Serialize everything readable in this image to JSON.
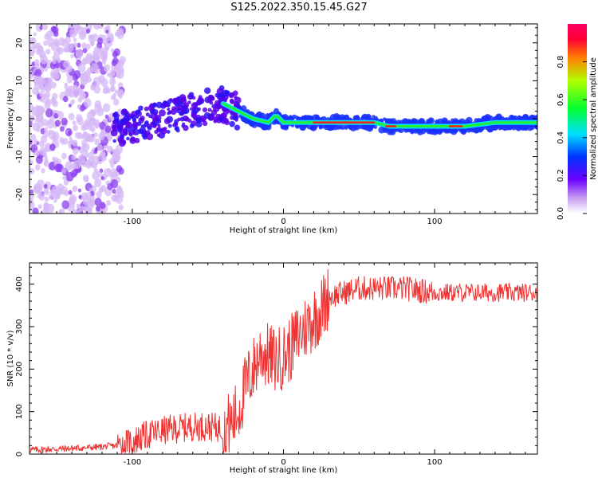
{
  "title": "S125.2022.350.15.45.G27",
  "chart_data": [
    {
      "type": "heatmap",
      "xlabel": "Height of straight line (km)",
      "ylabel": "Frequency (Hz)",
      "xlim": [
        -168,
        168
      ],
      "ylim": [
        -25,
        25
      ],
      "xticks": [
        -100,
        0,
        100
      ],
      "yticks": [
        -20,
        -10,
        0,
        10,
        20
      ],
      "colorbar": {
        "label": "Normalized spectral amplitude",
        "range": [
          0,
          1
        ],
        "ticks": [
          "0.0",
          "0.2",
          "0.4",
          "0.6",
          "0.8"
        ]
      },
      "ridge": {
        "x": [
          -110,
          -100,
          -90,
          -80,
          -70,
          -60,
          -50,
          -40,
          -35,
          -30,
          -20,
          -10,
          -5,
          0,
          10,
          20,
          40,
          60,
          70,
          80,
          90,
          100,
          120,
          140,
          168
        ],
        "frequency": [
          -2,
          -2,
          -1,
          0,
          1,
          2,
          3,
          4,
          3,
          2,
          0,
          -1,
          1,
          -1,
          -1,
          -1,
          -1,
          -1,
          -2,
          -2,
          -2,
          -2,
          -2,
          -1,
          -1
        ]
      }
    },
    {
      "type": "line",
      "xlabel": "Height of straight line (km)",
      "ylabel": "SNR (10 * v/v)",
      "xlim": [
        -168,
        168
      ],
      "ylim": [
        0,
        450
      ],
      "xticks": [
        -100,
        0,
        100
      ],
      "yticks": [
        0,
        100,
        200,
        300,
        400
      ],
      "color": "#ee3333",
      "x": [
        -168,
        -150,
        -130,
        -110,
        -100,
        -90,
        -80,
        -70,
        -60,
        -50,
        -40,
        -35,
        -30,
        -25,
        -20,
        -15,
        -10,
        -5,
        0,
        5,
        10,
        15,
        20,
        25,
        30,
        40,
        50,
        60,
        70,
        80,
        90,
        100,
        120,
        140,
        168
      ],
      "y": [
        10,
        12,
        15,
        20,
        30,
        45,
        55,
        60,
        65,
        65,
        60,
        70,
        100,
        160,
        200,
        240,
        230,
        220,
        230,
        250,
        280,
        300,
        320,
        340,
        370,
        380,
        390,
        390,
        390,
        390,
        385,
        380,
        380,
        380,
        380
      ]
    }
  ]
}
